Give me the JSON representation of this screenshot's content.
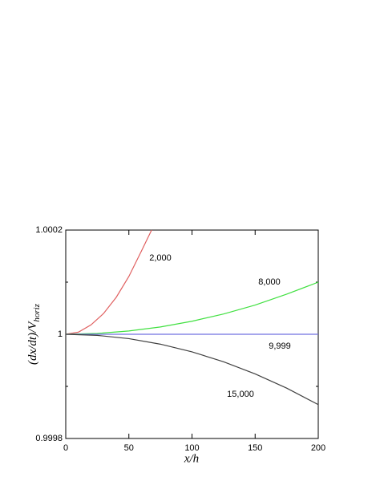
{
  "chart_data": {
    "type": "line",
    "xlabel": "x/h",
    "ylabel": "(dx/dt)/V",
    "ylabel_subscript": "horiz",
    "xlim": [
      0,
      200
    ],
    "xticks": [
      0,
      50,
      100,
      150,
      200
    ],
    "ylim": [
      0.9998,
      1.0002
    ],
    "yticks": [
      0.9998,
      1,
      1.0002
    ],
    "yminorticks": [
      0.9999,
      1.0001
    ],
    "series": [
      {
        "name": "2,000",
        "color": "#e06060",
        "x": [
          0,
          10,
          20,
          30,
          40,
          50,
          60,
          68
        ],
        "values": [
          1,
          1.000004,
          1.000018,
          1.00004,
          1.000071,
          1.000111,
          1.00016,
          1.0002
        ]
      },
      {
        "name": "8,000",
        "color": "#40e040",
        "x": [
          0,
          25,
          50,
          75,
          100,
          125,
          150,
          175,
          200
        ],
        "values": [
          1,
          1.0000016,
          1.0000063,
          1.000014,
          1.000025,
          1.000039,
          1.000056,
          1.000077,
          1.0001
        ]
      },
      {
        "name": "9,999",
        "color": "#7070e0",
        "x": [
          0,
          200
        ],
        "values": [
          1,
          1
        ]
      },
      {
        "name": "15,000",
        "color": "#404040",
        "x": [
          0,
          25,
          50,
          75,
          100,
          125,
          150,
          175,
          200
        ],
        "values": [
          1,
          0.9999979,
          0.9999916,
          0.999981,
          0.9999662,
          0.9999473,
          0.999924,
          0.9998966,
          0.999865
        ]
      }
    ]
  }
}
